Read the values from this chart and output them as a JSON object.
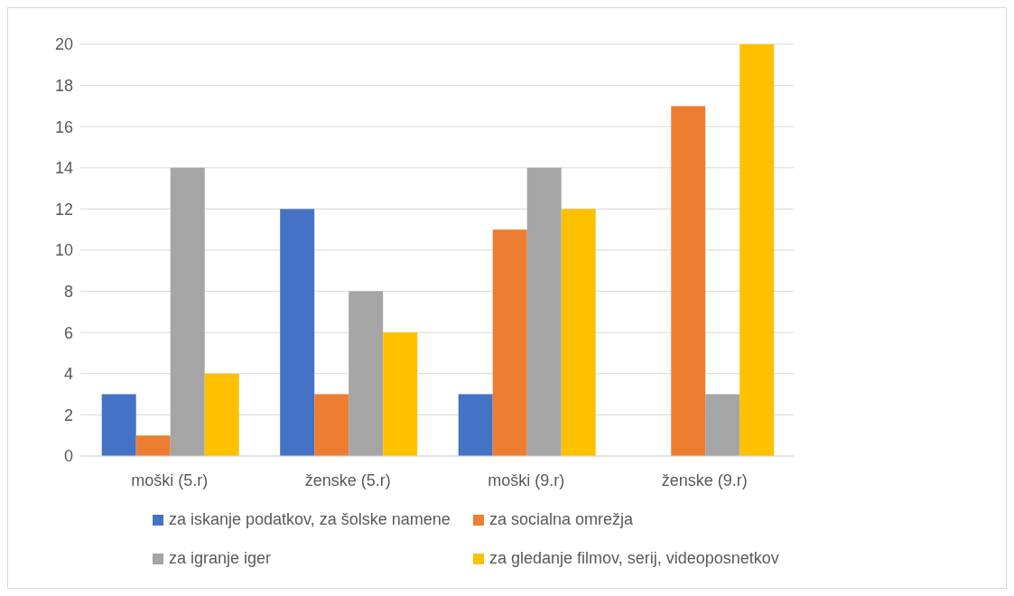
{
  "chart_data": {
    "type": "bar",
    "categories": [
      "moški (5.r)",
      "ženske (5.r)",
      "moški (9.r)",
      "ženske (9.r)"
    ],
    "series": [
      {
        "name": "za iskanje podatkov, za šolske namene",
        "color": "#4472c4",
        "values": [
          3,
          12,
          3,
          0
        ]
      },
      {
        "name": "za socialna omrežja",
        "color": "#ed7d31",
        "values": [
          1,
          3,
          11,
          17
        ]
      },
      {
        "name": "za igranje iger",
        "color": "#a5a5a5",
        "values": [
          14,
          8,
          14,
          3
        ]
      },
      {
        "name": "za gledanje filmov, serij, videoposnetkov",
        "color": "#ffc000",
        "values": [
          4,
          6,
          12,
          20
        ]
      }
    ],
    "ylim": [
      0,
      20
    ],
    "yticks": [
      0,
      2,
      4,
      6,
      8,
      10,
      12,
      14,
      16,
      18,
      20
    ],
    "grid": "y",
    "legend": "bottom"
  }
}
